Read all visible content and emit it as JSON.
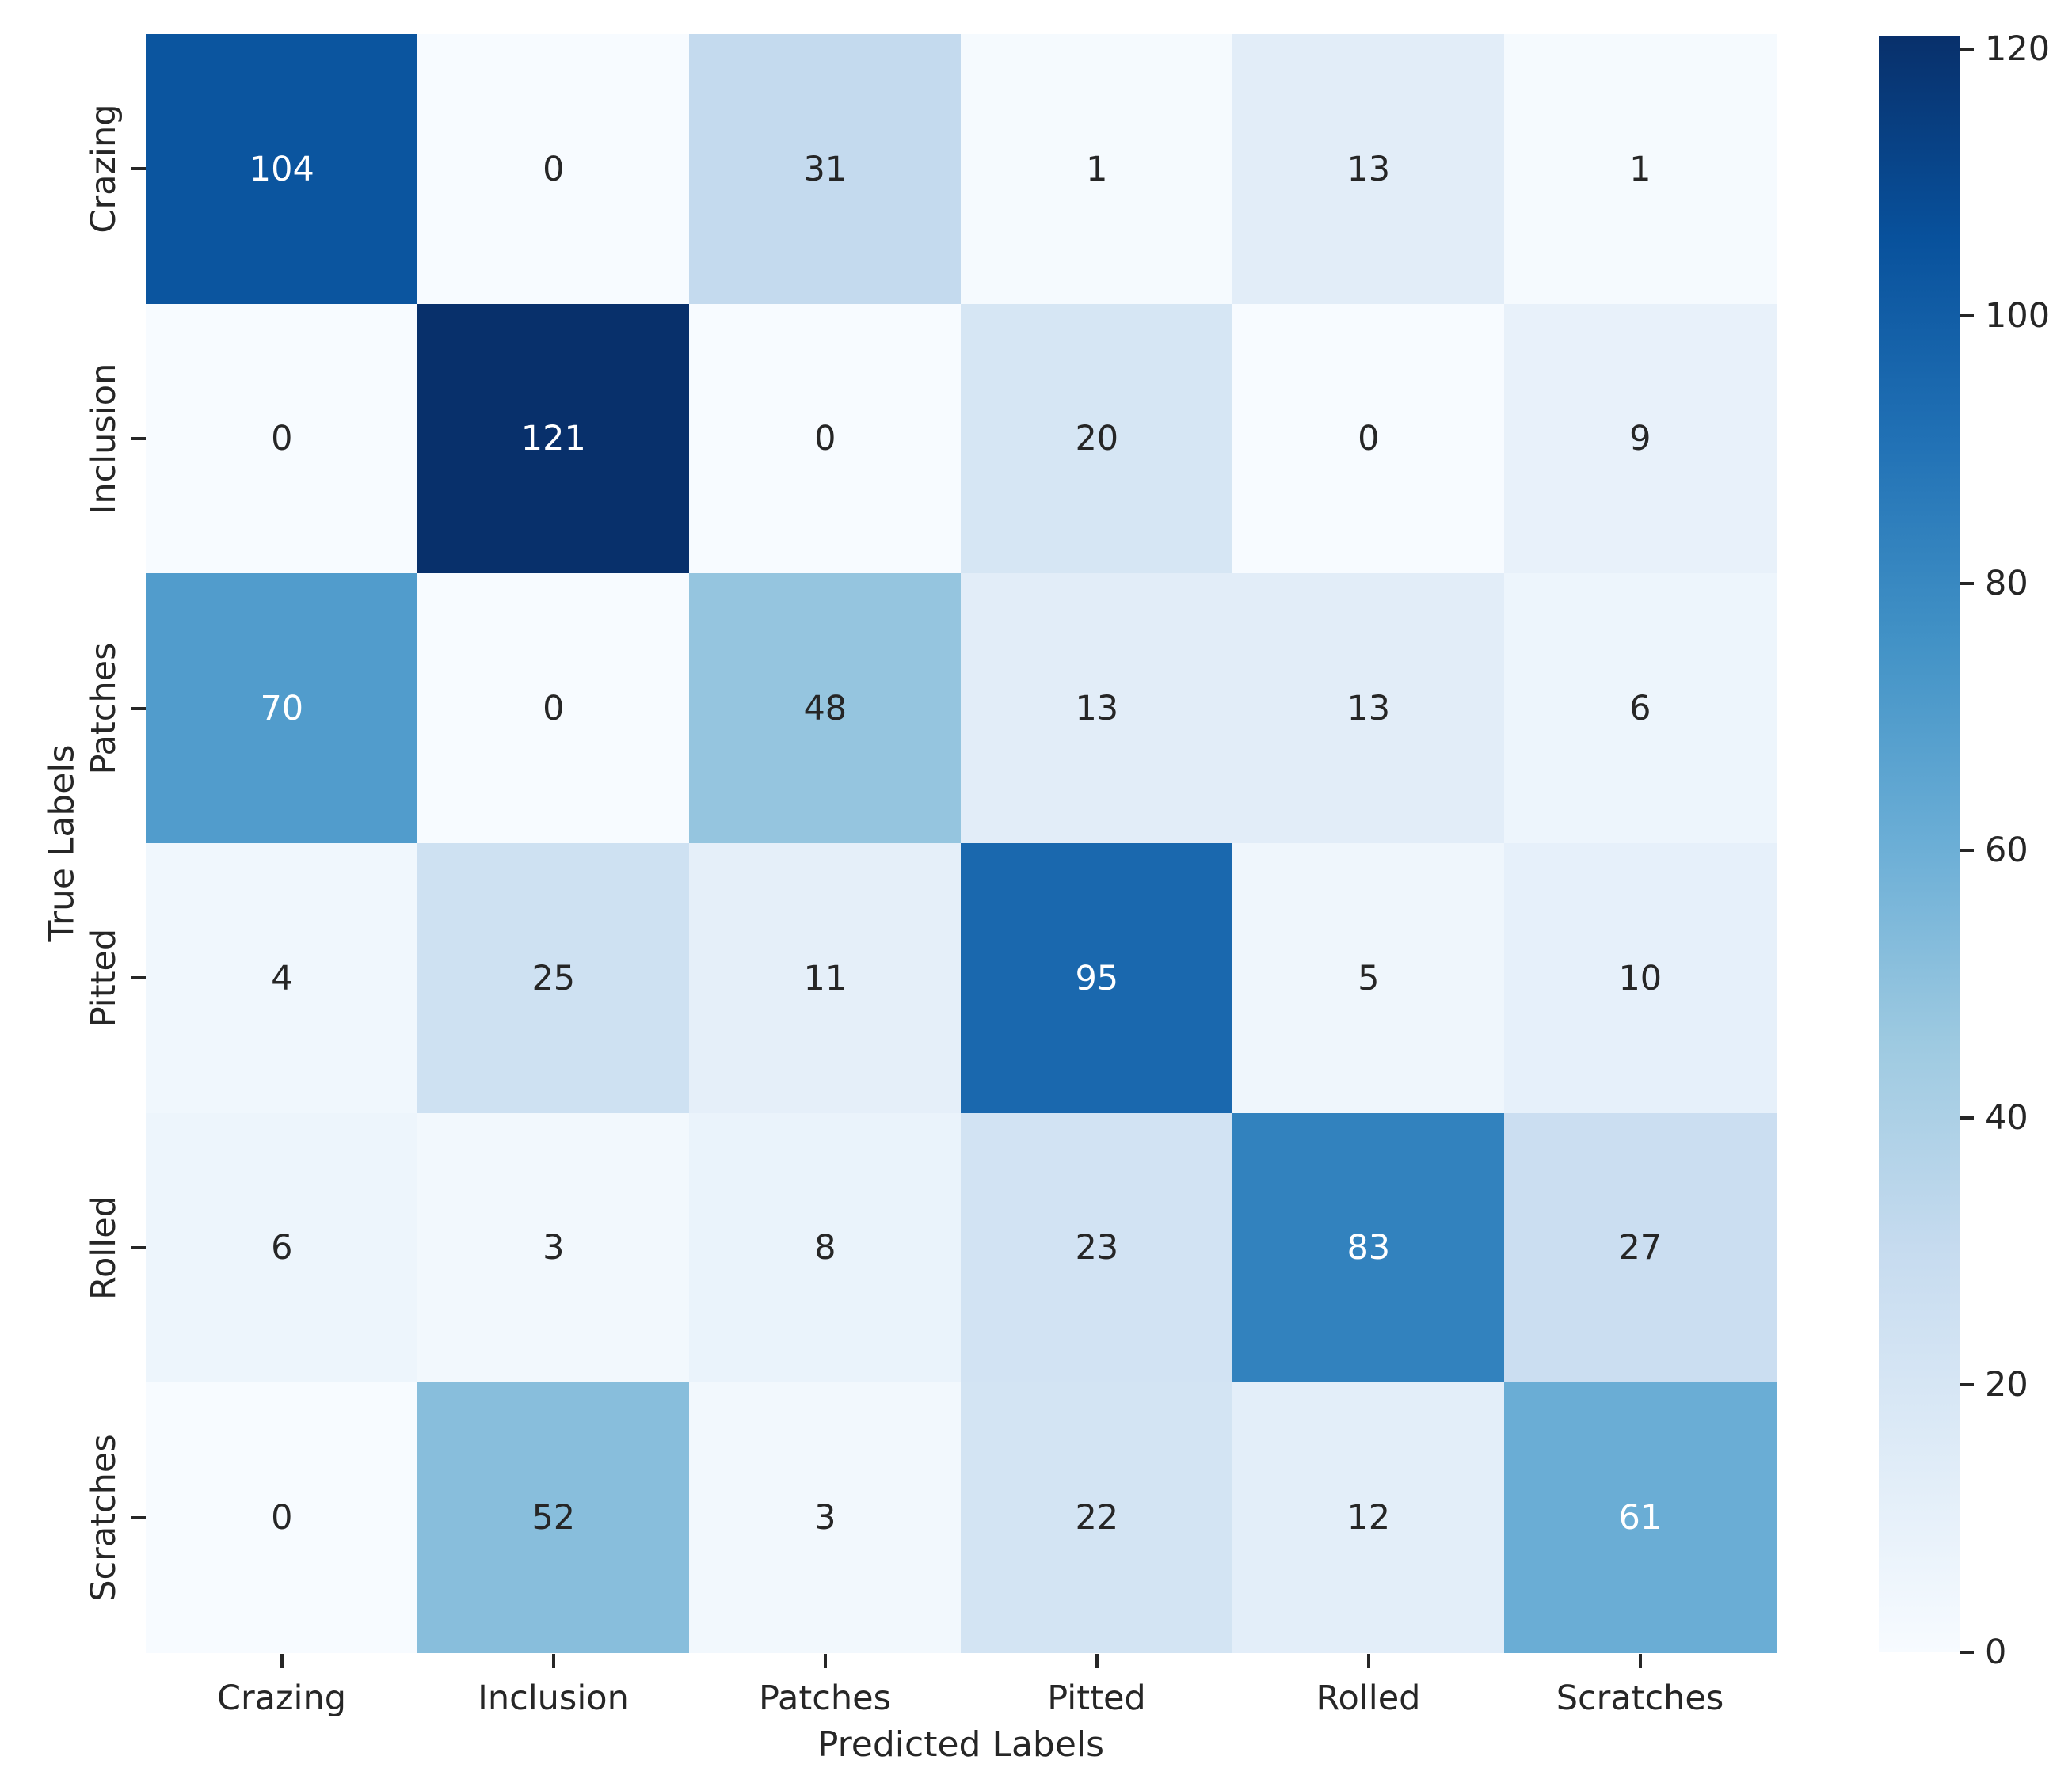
{
  "chart_data": {
    "type": "heatmap",
    "title": "",
    "xlabel": "Predicted Labels",
    "ylabel": "True Labels",
    "x_categories": [
      "Crazing",
      "Inclusion",
      "Patches",
      "Pitted",
      "Rolled",
      "Scratches"
    ],
    "y_categories": [
      "Crazing",
      "Inclusion",
      "Patches",
      "Pitted",
      "Rolled",
      "Scratches"
    ],
    "matrix": [
      [
        104,
        0,
        31,
        1,
        13,
        1
      ],
      [
        0,
        121,
        0,
        20,
        0,
        9
      ],
      [
        70,
        0,
        48,
        13,
        13,
        6
      ],
      [
        4,
        25,
        11,
        95,
        5,
        10
      ],
      [
        6,
        3,
        8,
        23,
        83,
        27
      ],
      [
        0,
        52,
        3,
        22,
        12,
        61
      ]
    ],
    "colormap": "Blues",
    "colormap_stops": [
      "#f7fbff",
      "#deebf7",
      "#c6dbef",
      "#9ecae1",
      "#6baed6",
      "#4292c6",
      "#2171b5",
      "#08519c",
      "#08306b"
    ],
    "vmin": 0,
    "vmax": 121,
    "colorbar_ticks": [
      0,
      20,
      40,
      60,
      80,
      100,
      120
    ],
    "colorbar_position": "right",
    "annot_color_light": "#ffffff",
    "annot_color_dark": "#262626",
    "background": "#ffffff",
    "grid": false,
    "legend_position": "none",
    "annotated": true
  }
}
